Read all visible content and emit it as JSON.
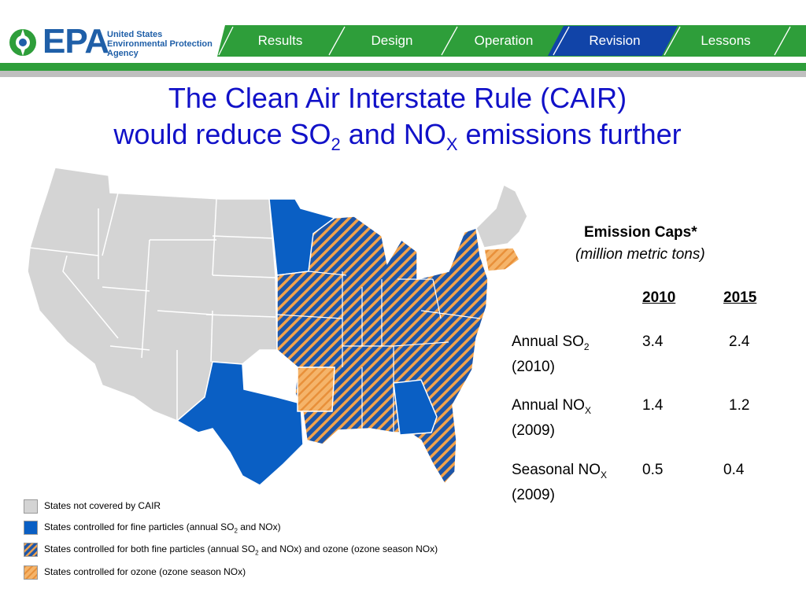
{
  "header": {
    "logo_word": "EPA",
    "agency_lines": [
      "United States",
      "Environmental Protection",
      "Agency"
    ],
    "tabs": [
      {
        "label": "Results",
        "active": false
      },
      {
        "label": "Design",
        "active": false
      },
      {
        "label": "Operation",
        "active": false
      },
      {
        "label": "Revision",
        "active": true
      },
      {
        "label": "Lessons",
        "active": false
      }
    ]
  },
  "title": {
    "line1": "The Clean Air Interstate Rule (CAIR)",
    "line2_pre": "would reduce SO",
    "line2_sub1": "2",
    "line2_mid": " and NO",
    "line2_sub2": "X",
    "line2_post": " emissions further"
  },
  "caps": {
    "title": "Emission Caps*",
    "subtitle": "(million metric tons)",
    "col1": "2010",
    "col2": "2015",
    "rows": [
      {
        "label": "Annual SO",
        "sub": "2",
        "year": "(2010)",
        "v2010": "3.4",
        "v2015": "2.4"
      },
      {
        "label": "Annual NO",
        "sub": "X",
        "year": "(2009)",
        "v2010": "1.4",
        "v2015": "1.2"
      },
      {
        "label": "Seasonal NO",
        "sub": "X",
        "year": "(2009)",
        "v2010": "0.5",
        "v2015": "0.4"
      }
    ]
  },
  "legend": [
    {
      "pre": "States not covered by CAIR",
      "style": "gray"
    },
    {
      "pre": "States controlled for fine particles (annual SO",
      "sub": "2",
      "post": " and NOx)",
      "style": "blue"
    },
    {
      "pre": "States controlled for both fine particles (annual SO",
      "sub": "2",
      "post": " and NOx) and ozone (ozone season NOx)",
      "style": "hatch"
    },
    {
      "pre": "States controlled for ozone (ozone season NOx)",
      "style": "orange"
    }
  ],
  "colors": {
    "epa_blue": "#1f5fa8",
    "nav_green": "#2e9e3a",
    "nav_active": "#1144a8",
    "state_gray": "#d4d4d4",
    "state_blue": "#0a5fc4",
    "hatch_orange": "#f2a24a",
    "title_blue": "#1111c8"
  }
}
